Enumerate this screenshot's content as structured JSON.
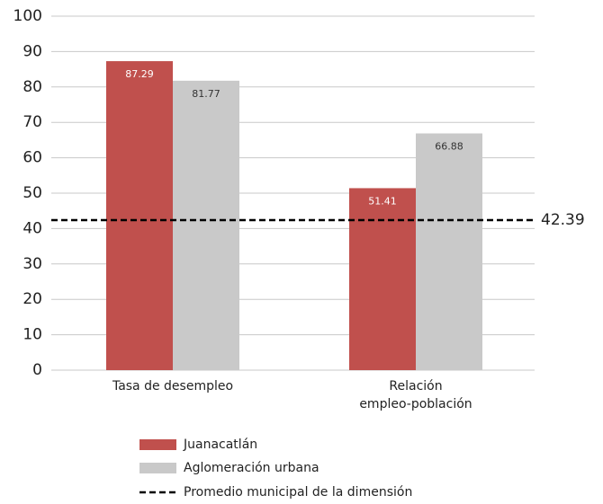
{
  "chart_data": {
    "type": "bar",
    "categories": [
      "Tasa de desempleo",
      "Relación\nempleo-población"
    ],
    "series": [
      {
        "name": "Juanacatlán",
        "color": "#c0504d",
        "values": [
          87.29,
          51.41
        ]
      },
      {
        "name": "Aglomeración urbana",
        "color": "#c9c9c9",
        "values": [
          81.77,
          66.88
        ]
      }
    ],
    "reference_line": {
      "name": "Promedio municipal de la dimensión",
      "value": 42.39
    },
    "ylim": [
      0,
      100
    ],
    "yticks": [
      0,
      10,
      20,
      30,
      40,
      50,
      60,
      70,
      80,
      90,
      100
    ],
    "grid": true
  }
}
